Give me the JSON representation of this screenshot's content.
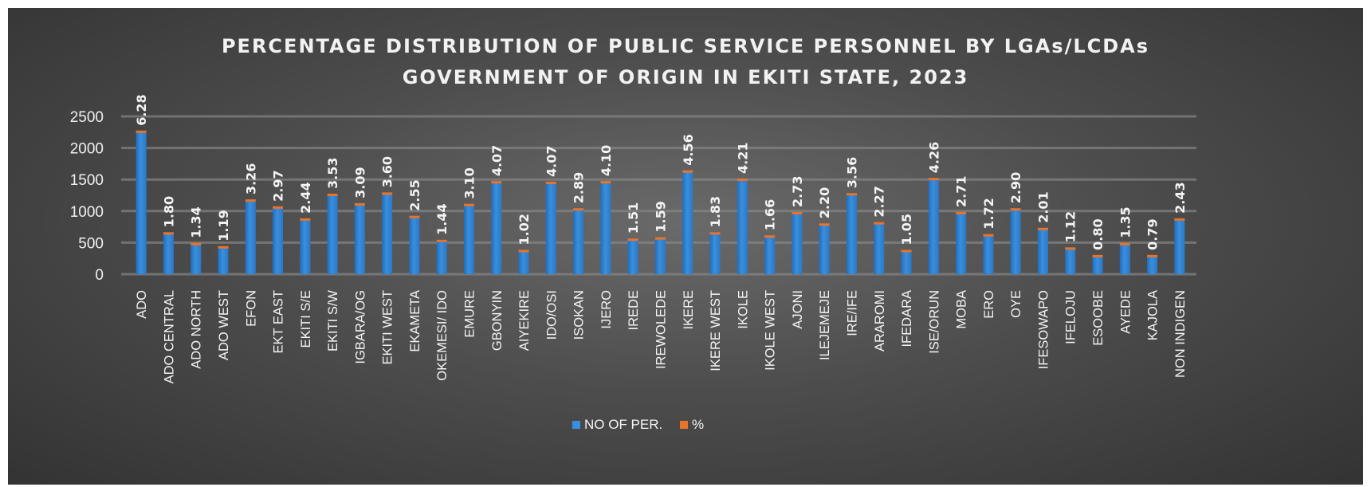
{
  "chart_data": {
    "type": "bar",
    "title": "PERCENTAGE DISTRIBUTION OF PUBLIC SERVICE PERSONNEL BY LGAs/LCDAs",
    "subtitle": "GOVERNMENT OF ORIGIN IN EKITI STATE, 2023",
    "categories": [
      "ADO",
      "ADO CENTRAL",
      "ADO NORTH",
      "ADO WEST",
      "EFON",
      "EKT EAST",
      "EKITI S/E",
      "EKITI S/W",
      "IGBARA/OG",
      "EKITI WEST",
      "EKAMETA",
      "OKEMESI/ IDO",
      "EMURE",
      "GBONYIN",
      "AIYEKIRE",
      "IDO/OSI",
      "ISOKAN",
      "IJERO",
      "IREDE",
      "IREWOLEDE",
      "IKERE",
      "IKERE WEST",
      "IKOLE",
      "IKOLE WEST",
      "AJONI",
      "ILEJEMEJE",
      "IRE/IFE",
      "ARAROMI",
      "IFEDARA",
      "ISE/ORUN",
      "MOBA",
      "ERO",
      "OYE",
      "IFESOWAPO",
      "IFELOJU",
      "ESOOBE",
      "AYEDE",
      "KAJOLA",
      "NON INDIGEN"
    ],
    "series": [
      {
        "name": "NO OF PER.",
        "color": "#3a8fdc",
        "values": [
          2250,
          640,
          470,
          420,
          1160,
          1050,
          860,
          1250,
          1100,
          1270,
          900,
          520,
          1090,
          1450,
          360,
          1440,
          1020,
          1450,
          540,
          560,
          1620,
          640,
          1490,
          590,
          960,
          780,
          1260,
          800,
          360,
          1500,
          960,
          610,
          1020,
          710,
          400,
          280,
          470,
          280,
          860
        ]
      },
      {
        "name": "%",
        "color": "#e8732a",
        "values": [
          6.28,
          1.8,
          1.34,
          1.19,
          3.26,
          2.97,
          2.44,
          3.53,
          3.09,
          3.6,
          2.55,
          1.44,
          3.1,
          4.07,
          1.02,
          4.07,
          2.89,
          4.1,
          1.51,
          1.59,
          4.56,
          1.83,
          4.21,
          1.66,
          2.73,
          2.2,
          3.56,
          2.27,
          1.05,
          4.26,
          2.71,
          1.72,
          2.9,
          2.01,
          1.12,
          0.8,
          1.35,
          0.79,
          2.43
        ]
      }
    ],
    "data_labels": [
      "6.28",
      "1.80",
      "1.34",
      "1.19",
      "3.26",
      "2.97",
      "2.44",
      "3.53",
      "3.09",
      "3.60",
      "2.55",
      "1.44",
      "3.10",
      "4.07",
      "1.02",
      "4.07",
      "2.89",
      "4.10",
      "1.51",
      "1.59",
      "4.56",
      "1.83",
      "4.21",
      "1.66",
      "2.73",
      "2.20",
      "3.56",
      "2.27",
      "1.05",
      "4.26",
      "2.71",
      "1.72",
      "2.90",
      "2.01",
      "1.12",
      "0.80",
      "1.35",
      "0.79",
      "2.43"
    ],
    "ylim": [
      0,
      2500
    ],
    "yticks": [
      "0",
      "500",
      "1000",
      "1500",
      "2000",
      "2500"
    ],
    "grid": true,
    "legend_position": "bottom",
    "background": "#4d4d4d"
  }
}
